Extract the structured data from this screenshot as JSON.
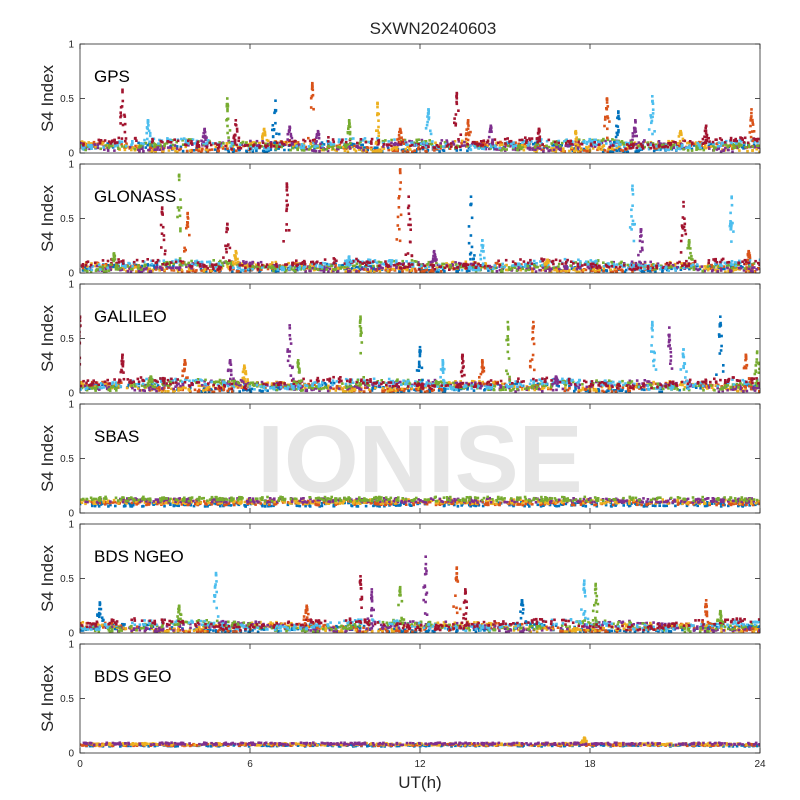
{
  "chart_data": {
    "type": "scatter",
    "title": "SXWN20240603",
    "xlabel": "UT(h)",
    "ylabel": "S4 Index",
    "xlim": [
      0,
      24
    ],
    "ylim": [
      0,
      1
    ],
    "x_ticks": [
      "0",
      "6",
      "12",
      "18",
      "24"
    ],
    "y_ticks": [
      "0",
      "0.5",
      "1"
    ],
    "watermark": "IONISE",
    "series_colors": [
      "#0072bd",
      "#d95319",
      "#edb120",
      "#7e2f8e",
      "#77ac30",
      "#4dbeee",
      "#a2142f"
    ],
    "panels": [
      {
        "name": "GPS",
        "baseline": 0.07,
        "spikes": [
          [
            1.5,
            0.58,
            6
          ],
          [
            2.4,
            0.3,
            5
          ],
          [
            4.4,
            0.22,
            3
          ],
          [
            5.2,
            0.5,
            4
          ],
          [
            5.5,
            0.3,
            6
          ],
          [
            6.5,
            0.22,
            2
          ],
          [
            6.9,
            0.48,
            0
          ],
          [
            7.4,
            0.24,
            3
          ],
          [
            8.2,
            0.64,
            1
          ],
          [
            8.4,
            0.2,
            3
          ],
          [
            9.5,
            0.3,
            4
          ],
          [
            10.5,
            0.46,
            2
          ],
          [
            11.3,
            0.22,
            1
          ],
          [
            12.3,
            0.4,
            5
          ],
          [
            13.3,
            0.55,
            6
          ],
          [
            13.7,
            0.3,
            1
          ],
          [
            14.5,
            0.25,
            3
          ],
          [
            16.2,
            0.22,
            6
          ],
          [
            17.5,
            0.2,
            2
          ],
          [
            18.6,
            0.5,
            1
          ],
          [
            19.0,
            0.38,
            0
          ],
          [
            19.6,
            0.3,
            3
          ],
          [
            20.2,
            0.52,
            5
          ],
          [
            21.2,
            0.2,
            2
          ],
          [
            22.1,
            0.25,
            6
          ],
          [
            23.7,
            0.4,
            1
          ]
        ]
      },
      {
        "name": "GLONASS",
        "baseline": 0.06,
        "spikes": [
          [
            1.2,
            0.18,
            4
          ],
          [
            2.9,
            0.6,
            6
          ],
          [
            3.5,
            0.9,
            4
          ],
          [
            3.8,
            0.55,
            1
          ],
          [
            5.2,
            0.45,
            6
          ],
          [
            5.5,
            0.2,
            2
          ],
          [
            7.3,
            0.82,
            6
          ],
          [
            9.5,
            0.15,
            5
          ],
          [
            11.3,
            0.95,
            1
          ],
          [
            11.6,
            0.7,
            6
          ],
          [
            12.5,
            0.2,
            3
          ],
          [
            13.8,
            0.7,
            0
          ],
          [
            14.2,
            0.3,
            5
          ],
          [
            16.5,
            0.12,
            2
          ],
          [
            19.5,
            0.8,
            5
          ],
          [
            19.8,
            0.4,
            3
          ],
          [
            21.3,
            0.65,
            6
          ],
          [
            21.5,
            0.3,
            4
          ],
          [
            23.0,
            0.7,
            5
          ],
          [
            23.6,
            0.2,
            1
          ]
        ]
      },
      {
        "name": "GALILEO",
        "baseline": 0.07,
        "spikes": [
          [
            0,
            0.7,
            6
          ],
          [
            1.5,
            0.35,
            6
          ],
          [
            2.5,
            0.15,
            4
          ],
          [
            3.7,
            0.3,
            1
          ],
          [
            5.3,
            0.3,
            3
          ],
          [
            5.8,
            0.25,
            2
          ],
          [
            7.4,
            0.62,
            3
          ],
          [
            7.7,
            0.3,
            4
          ],
          [
            9.9,
            0.7,
            4
          ],
          [
            12.0,
            0.42,
            0
          ],
          [
            12.8,
            0.3,
            5
          ],
          [
            13.5,
            0.35,
            6
          ],
          [
            14.2,
            0.3,
            1
          ],
          [
            15.1,
            0.65,
            4
          ],
          [
            16.0,
            0.65,
            1
          ],
          [
            16.8,
            0.15,
            3
          ],
          [
            20.2,
            0.65,
            5
          ],
          [
            20.8,
            0.6,
            3
          ],
          [
            21.3,
            0.4,
            5
          ],
          [
            22.6,
            0.7,
            0
          ],
          [
            23.5,
            0.35,
            1
          ],
          [
            23.9,
            0.38,
            4
          ]
        ]
      },
      {
        "name": "SBAS",
        "baseline": 0.11,
        "spikes": []
      },
      {
        "name": "BDS NGEO",
        "baseline": 0.06,
        "spikes": [
          [
            0.7,
            0.28,
            0
          ],
          [
            3.5,
            0.25,
            4
          ],
          [
            4.8,
            0.55,
            5
          ],
          [
            8.0,
            0.25,
            1
          ],
          [
            9.9,
            0.52,
            6
          ],
          [
            10.3,
            0.4,
            3
          ],
          [
            11.3,
            0.42,
            4
          ],
          [
            12.2,
            0.7,
            3
          ],
          [
            13.3,
            0.6,
            1
          ],
          [
            13.6,
            0.4,
            6
          ],
          [
            15.6,
            0.3,
            0
          ],
          [
            17.8,
            0.48,
            5
          ],
          [
            18.2,
            0.45,
            4
          ],
          [
            22.1,
            0.3,
            1
          ],
          [
            22.6,
            0.2,
            4
          ]
        ]
      },
      {
        "name": "BDS GEO",
        "baseline": 0.08,
        "spikes": [
          [
            17.8,
            0.14,
            2
          ]
        ]
      }
    ]
  }
}
